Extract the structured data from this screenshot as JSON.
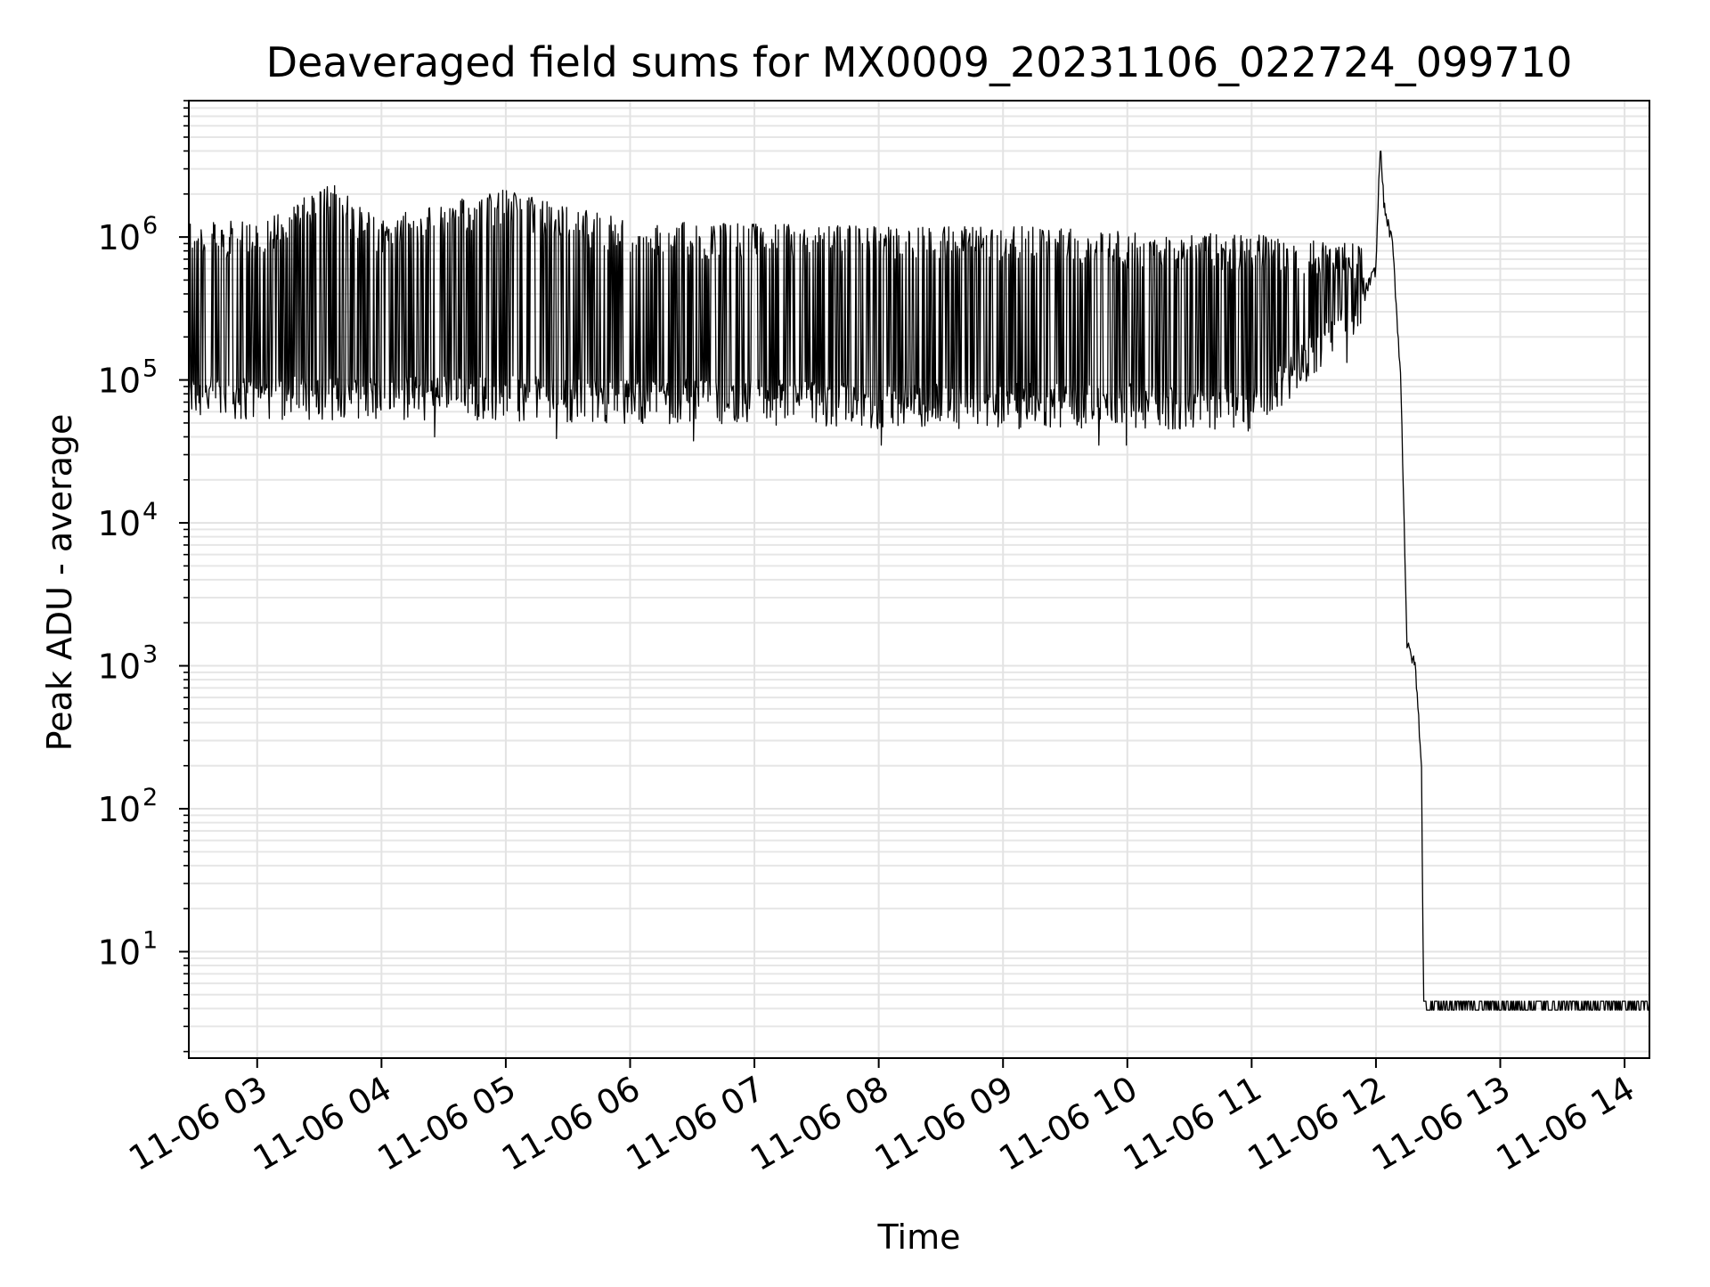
{
  "chart_data": {
    "type": "line",
    "title": "Deaveraged field sums for MX0009_20231106_022724_099710",
    "xlabel": "Time",
    "ylabel": "Peak ADU - average",
    "yscale": "log",
    "ylim": [
      1.8,
      9000000
    ],
    "xlim": [
      "2023-11-06 02:27",
      "2023-11-06 14:12"
    ],
    "grid": true,
    "grid_minor": true,
    "line_color": "#000000",
    "x_ticks": [
      {
        "value": "2023-11-06 03:00",
        "label": "11-06 03"
      },
      {
        "value": "2023-11-06 04:00",
        "label": "11-06 04"
      },
      {
        "value": "2023-11-06 05:00",
        "label": "11-06 05"
      },
      {
        "value": "2023-11-06 06:00",
        "label": "11-06 06"
      },
      {
        "value": "2023-11-06 07:00",
        "label": "11-06 07"
      },
      {
        "value": "2023-11-06 08:00",
        "label": "11-06 08"
      },
      {
        "value": "2023-11-06 09:00",
        "label": "11-06 09"
      },
      {
        "value": "2023-11-06 10:00",
        "label": "11-06 10"
      },
      {
        "value": "2023-11-06 11:00",
        "label": "11-06 11"
      },
      {
        "value": "2023-11-06 12:00",
        "label": "11-06 12"
      },
      {
        "value": "2023-11-06 13:00",
        "label": "11-06 13"
      },
      {
        "value": "2023-11-06 14:00",
        "label": "11-06 14"
      }
    ],
    "y_ticks": [
      {
        "value": 10,
        "base": "10",
        "exp": "1"
      },
      {
        "value": 100,
        "base": "10",
        "exp": "2"
      },
      {
        "value": 1000,
        "base": "10",
        "exp": "3"
      },
      {
        "value": 10000,
        "base": "10",
        "exp": "4"
      },
      {
        "value": 100000,
        "base": "10",
        "exp": "5"
      },
      {
        "value": 1000000,
        "base": "10",
        "exp": "6"
      }
    ],
    "series": [
      {
        "description_points": [
          {
            "t": "2023-11-06 02:27",
            "baseline": 80000,
            "peak": 1300000
          },
          {
            "t": "2023-11-06 03:00",
            "baseline": 80000,
            "peak": 1300000
          },
          {
            "t": "2023-11-06 03:36",
            "baseline": 80000,
            "peak": 2400000
          },
          {
            "t": "2023-11-06 04:00",
            "baseline": 80000,
            "peak": 1350000
          },
          {
            "t": "2023-11-06 04:58",
            "baseline": 80000,
            "peak": 2200000
          },
          {
            "t": "2023-11-06 06:00",
            "baseline": 75000,
            "peak": 1300000
          },
          {
            "t": "2023-11-06 07:00",
            "baseline": 75000,
            "peak": 1250000
          },
          {
            "t": "2023-11-06 08:00",
            "baseline": 70000,
            "peak": 1200000
          },
          {
            "t": "2023-11-06 09:00",
            "baseline": 70000,
            "peak": 1200000
          },
          {
            "t": "2023-11-06 10:00",
            "baseline": 70000,
            "peak": 1100000
          },
          {
            "t": "2023-11-06 11:00",
            "baseline": 65000,
            "peak": 1050000
          },
          {
            "t": "2023-11-06 11:50",
            "baseline": 300000,
            "peak": 900000
          },
          {
            "t": "2023-11-06 12:00",
            "baseline": 600000,
            "peak": 1000000
          },
          {
            "t": "2023-11-06 12:02",
            "baseline": 4500000,
            "peak": 4500000
          },
          {
            "t": "2023-11-06 12:04",
            "baseline": 1600000,
            "peak": 1600000
          },
          {
            "t": "2023-11-06 12:08",
            "baseline": 900000,
            "peak": 900000
          },
          {
            "t": "2023-11-06 12:12",
            "baseline": 100000,
            "peak": 100000
          },
          {
            "t": "2023-11-06 12:15",
            "baseline": 1400,
            "peak": 1400
          },
          {
            "t": "2023-11-06 12:19",
            "baseline": 1000,
            "peak": 1000
          },
          {
            "t": "2023-11-06 12:22",
            "baseline": 200,
            "peak": 200
          },
          {
            "t": "2023-11-06 12:23",
            "baseline": 4,
            "peak": 4
          },
          {
            "t": "2023-11-06 14:12",
            "baseline": 4,
            "peak": 4.5
          }
        ]
      }
    ]
  }
}
